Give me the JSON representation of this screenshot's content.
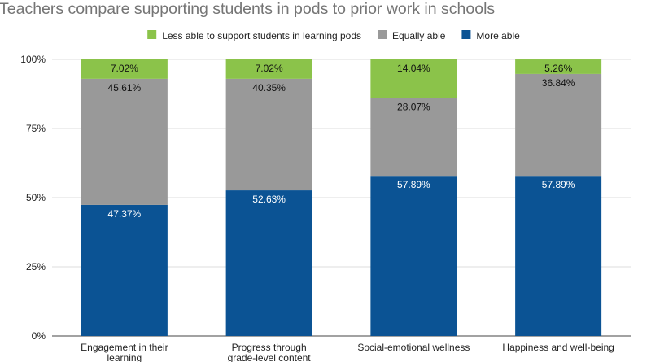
{
  "chart_data": {
    "type": "bar",
    "stacked": true,
    "title": "Teachers compare supporting students in pods to prior work in schools",
    "categories": [
      [
        "Engagement in their",
        "learning"
      ],
      [
        "Progress through",
        "grade-level content"
      ],
      [
        "Social-emotional wellness"
      ],
      [
        "Happiness and well-being"
      ]
    ],
    "series": [
      {
        "name": "More able",
        "color": "#0b5394",
        "label_color": "#ffffff",
        "values": [
          47.37,
          52.63,
          57.89,
          57.89
        ],
        "labels": [
          "47.37%",
          "52.63%",
          "57.89%",
          "57.89%"
        ]
      },
      {
        "name": "Equally able",
        "color": "#999999",
        "label_color": "#111111",
        "values": [
          45.61,
          40.35,
          28.07,
          36.84
        ],
        "labels": [
          "45.61%",
          "40.35%",
          "28.07%",
          "36.84%"
        ]
      },
      {
        "name": "Less able to support students in learning pods",
        "color": "#8bc34a",
        "label_color": "#111111",
        "values": [
          7.02,
          7.02,
          14.04,
          5.26
        ],
        "labels": [
          "7.02%",
          "7.02%",
          "14.04%",
          "5.26%"
        ]
      }
    ],
    "legend_order": [
      "Less able to support students in learning pods",
      "Equally able",
      "More able"
    ],
    "legend_position": "top",
    "y_ticks": [
      0,
      25,
      50,
      75,
      100
    ],
    "y_tick_labels": [
      "0%",
      "25%",
      "50%",
      "75%",
      "100%"
    ],
    "ylim": [
      0,
      100
    ],
    "grid": true
  }
}
